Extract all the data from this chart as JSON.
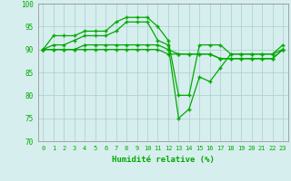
{
  "xlabel": "Humidité relative (%)",
  "xlim": [
    -0.5,
    23.5
  ],
  "ylim": [
    70,
    100
  ],
  "yticks": [
    70,
    75,
    80,
    85,
    90,
    95,
    100
  ],
  "xticks": [
    0,
    1,
    2,
    3,
    4,
    5,
    6,
    7,
    8,
    9,
    10,
    11,
    12,
    13,
    14,
    15,
    16,
    17,
    18,
    19,
    20,
    21,
    22,
    23
  ],
  "bg_color": "#d7eeee",
  "grid_color": "#a8cece",
  "line_color": "#00aa00",
  "marker": "+",
  "lines": [
    [
      90,
      93,
      93,
      93,
      94,
      94,
      94,
      96,
      97,
      97,
      97,
      95,
      92,
      80,
      80,
      91,
      91,
      91,
      89,
      89,
      89,
      89,
      89,
      90
    ],
    [
      90,
      91,
      91,
      92,
      93,
      93,
      93,
      94,
      96,
      96,
      96,
      92,
      91,
      75,
      77,
      84,
      83,
      86,
      89,
      89,
      89,
      89,
      89,
      91
    ],
    [
      90,
      90,
      90,
      90,
      91,
      91,
      91,
      91,
      91,
      91,
      91,
      91,
      90,
      89,
      89,
      89,
      89,
      88,
      88,
      88,
      88,
      88,
      88,
      90
    ],
    [
      90,
      90,
      90,
      90,
      90,
      90,
      90,
      90,
      90,
      90,
      90,
      90,
      89,
      89,
      89,
      89,
      89,
      88,
      88,
      88,
      88,
      88,
      88,
      90
    ]
  ]
}
